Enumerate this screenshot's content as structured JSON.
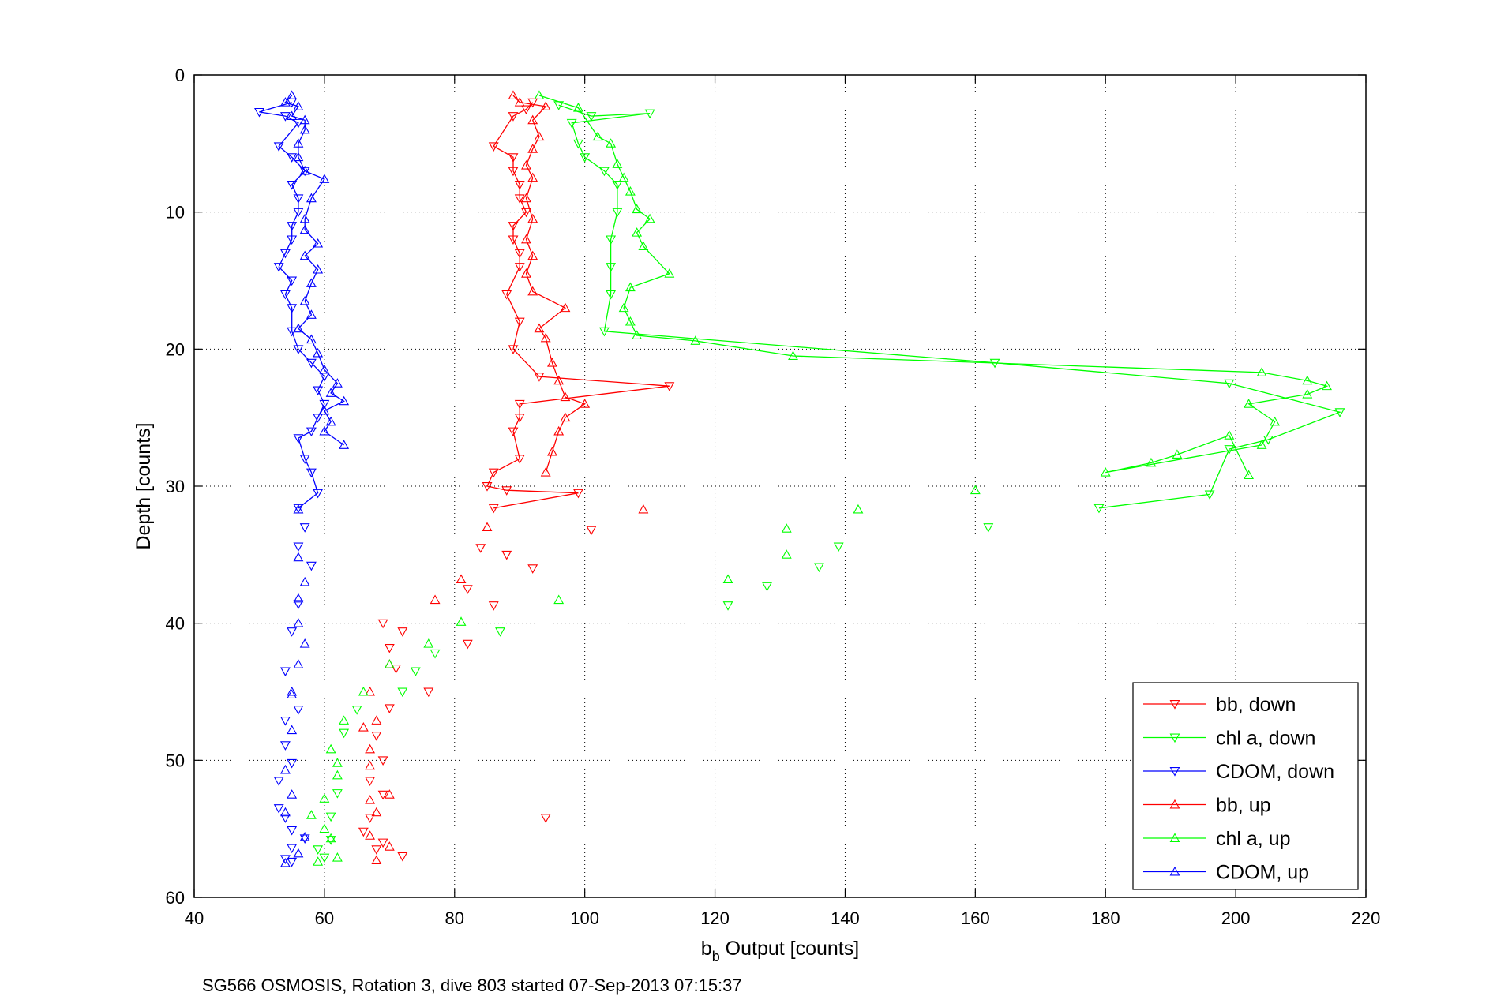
{
  "chart_data": {
    "type": "scatter",
    "xlabel": "b",
    "xlabel_sub": "b",
    "xlabel_rest": " Output [counts]",
    "ylabel": "Depth [counts]",
    "caption": "SG566 OSMOSIS, Rotation 3, dive 803 started 07-Sep-2013 07:15:37",
    "xlim": [
      40,
      220
    ],
    "ylim": [
      0,
      60
    ],
    "y_reversed": true,
    "grid": true,
    "legend_position": "bottom-right",
    "xticks": [
      "40",
      "60",
      "80",
      "100",
      "120",
      "140",
      "160",
      "180",
      "200",
      "220"
    ],
    "yticks": [
      "0",
      "10",
      "20",
      "30",
      "40",
      "50",
      "60"
    ],
    "colors": {
      "bb": "#ff0000",
      "chl": "#00ff00",
      "cdom": "#0000ff"
    },
    "series": [
      {
        "name": "bb, down",
        "color": "#ff0000",
        "marker": "triangle-down",
        "line": true,
        "points": [
          [
            92,
            2
          ],
          [
            91,
            2.5
          ],
          [
            89,
            3
          ],
          [
            86,
            5.2
          ],
          [
            89,
            6
          ],
          [
            89,
            7
          ],
          [
            90,
            8
          ],
          [
            90,
            9
          ],
          [
            91,
            10
          ],
          [
            89,
            11
          ],
          [
            89,
            12
          ],
          [
            90,
            13
          ],
          [
            90,
            14
          ],
          [
            88,
            16
          ],
          [
            90,
            18
          ],
          [
            89,
            20
          ],
          [
            93,
            22
          ],
          [
            113,
            22.7
          ],
          [
            90,
            24
          ],
          [
            90,
            25
          ],
          [
            89,
            26
          ],
          [
            90,
            28
          ],
          [
            86,
            29
          ],
          [
            85,
            30
          ],
          [
            88,
            30.3
          ],
          [
            99,
            30.5
          ],
          [
            86,
            31.6
          ]
        ]
      },
      {
        "name": "chl a, down",
        "color": "#00ff00",
        "marker": "triangle-down",
        "line": true,
        "points": [
          [
            96,
            2.2
          ],
          [
            101,
            3
          ],
          [
            110,
            2.8
          ],
          [
            98,
            3.5
          ],
          [
            99,
            5
          ],
          [
            100,
            6
          ],
          [
            103,
            7
          ],
          [
            105,
            8
          ],
          [
            105,
            10
          ],
          [
            104,
            12
          ],
          [
            104,
            14
          ],
          [
            104,
            16
          ],
          [
            103,
            18.7
          ],
          [
            163,
            21
          ],
          [
            199,
            22.5
          ],
          [
            216,
            24.6
          ],
          [
            205,
            26.6
          ],
          [
            199,
            27.3
          ],
          [
            196,
            30.6
          ],
          [
            179,
            31.6
          ]
        ]
      },
      {
        "name": "CDOM, down",
        "color": "#0000ff",
        "marker": "triangle-down",
        "line": true,
        "points": [
          [
            55,
            2
          ],
          [
            50,
            2.7
          ],
          [
            54,
            3
          ],
          [
            56,
            3.5
          ],
          [
            53,
            5.2
          ],
          [
            55,
            6
          ],
          [
            57,
            7
          ],
          [
            55,
            8
          ],
          [
            56,
            9
          ],
          [
            56,
            10
          ],
          [
            55,
            11
          ],
          [
            55,
            12
          ],
          [
            54,
            13
          ],
          [
            53,
            14
          ],
          [
            55,
            15
          ],
          [
            54,
            16
          ],
          [
            55,
            17
          ],
          [
            55,
            18.7
          ],
          [
            56,
            20
          ],
          [
            58,
            21
          ],
          [
            60,
            22
          ],
          [
            59,
            23
          ],
          [
            60,
            24
          ],
          [
            59,
            25
          ],
          [
            58,
            26
          ],
          [
            56,
            26.5
          ],
          [
            57,
            28
          ],
          [
            58,
            29
          ],
          [
            59,
            30.5
          ],
          [
            56,
            31.6
          ]
        ]
      },
      {
        "name": "bb, up",
        "color": "#ff0000",
        "marker": "triangle-up",
        "line": true,
        "points": [
          [
            89,
            1.5
          ],
          [
            90,
            2
          ],
          [
            94,
            2.3
          ],
          [
            92,
            3.3
          ],
          [
            93,
            4.5
          ],
          [
            92,
            5.4
          ],
          [
            91,
            6.6
          ],
          [
            92,
            7.5
          ],
          [
            91,
            9
          ],
          [
            92,
            10.5
          ],
          [
            91,
            12
          ],
          [
            92,
            13.2
          ],
          [
            91,
            14.5
          ],
          [
            92,
            15.8
          ],
          [
            97,
            17
          ],
          [
            93,
            18.5
          ],
          [
            94,
            19.2
          ],
          [
            95,
            21
          ],
          [
            96,
            22.3
          ],
          [
            97,
            23.5
          ],
          [
            100,
            24
          ],
          [
            97,
            25
          ],
          [
            96,
            26
          ],
          [
            95,
            27.5
          ],
          [
            94,
            29
          ]
        ]
      },
      {
        "name": "chl a, up",
        "color": "#00ff00",
        "marker": "triangle-up",
        "line": true,
        "points": [
          [
            93,
            1.5
          ],
          [
            99,
            2.4
          ],
          [
            102,
            4.5
          ],
          [
            104,
            5
          ],
          [
            105,
            6.5
          ],
          [
            106,
            7.5
          ],
          [
            107,
            8.5
          ],
          [
            108,
            9.8
          ],
          [
            110,
            10.5
          ],
          [
            108,
            11.5
          ],
          [
            109,
            12.5
          ],
          [
            113,
            14.5
          ],
          [
            107,
            15.5
          ],
          [
            106,
            17
          ],
          [
            107,
            18
          ],
          [
            108,
            19
          ],
          [
            117,
            19.4
          ],
          [
            132,
            20.5
          ],
          [
            204,
            21.7
          ],
          [
            211,
            22.3
          ],
          [
            214,
            22.7
          ],
          [
            211,
            23.3
          ],
          [
            202,
            24
          ],
          [
            206,
            25.3
          ],
          [
            204,
            27
          ],
          [
            180,
            29
          ],
          [
            187,
            28.3
          ],
          [
            191,
            27.7
          ],
          [
            199,
            26.3
          ],
          [
            202,
            29.2
          ]
        ]
      },
      {
        "name": "CDOM, up",
        "color": "#0000ff",
        "marker": "triangle-up",
        "line": true,
        "points": [
          [
            55,
            1.5
          ],
          [
            54,
            2
          ],
          [
            56,
            2.3
          ],
          [
            55,
            3
          ],
          [
            57,
            3.3
          ],
          [
            57,
            4
          ],
          [
            56,
            5
          ],
          [
            56,
            6
          ],
          [
            57,
            7
          ],
          [
            60,
            7.6
          ],
          [
            58,
            9
          ],
          [
            57,
            10.5
          ],
          [
            57,
            11.3
          ],
          [
            59,
            12.3
          ],
          [
            57,
            13.2
          ],
          [
            59,
            14.2
          ],
          [
            58,
            15.2
          ],
          [
            57,
            16.5
          ],
          [
            58,
            17.5
          ],
          [
            56,
            18.5
          ],
          [
            58,
            19.3
          ],
          [
            59,
            20.3
          ],
          [
            60,
            21.5
          ],
          [
            62,
            22.5
          ],
          [
            61,
            23.2
          ],
          [
            63,
            23.8
          ],
          [
            60,
            24.5
          ],
          [
            61,
            25.3
          ],
          [
            60,
            26
          ],
          [
            63,
            27
          ]
        ]
      },
      {
        "name": "",
        "color": "#ff0000",
        "marker": "triangle-down",
        "line": false,
        "points": [
          [
            101,
            33.2
          ],
          [
            84,
            34.5
          ],
          [
            88,
            35
          ],
          [
            92,
            36
          ],
          [
            86,
            38.7
          ],
          [
            82,
            37.5
          ],
          [
            69,
            40
          ],
          [
            72,
            40.6
          ],
          [
            70,
            41.8
          ],
          [
            82,
            41.5
          ],
          [
            71,
            43.3
          ],
          [
            76,
            45
          ],
          [
            70,
            46.2
          ],
          [
            68,
            48.2
          ],
          [
            69,
            50
          ],
          [
            67,
            51.5
          ],
          [
            69,
            52.5
          ],
          [
            67,
            54.2
          ],
          [
            94,
            54.2
          ],
          [
            66,
            55.2
          ],
          [
            69,
            56
          ],
          [
            68,
            56.5
          ],
          [
            72,
            57
          ]
        ]
      },
      {
        "name": "",
        "color": "#ff0000",
        "marker": "triangle-up",
        "line": false,
        "points": [
          [
            109,
            31.7
          ],
          [
            85,
            33
          ],
          [
            81,
            36.8
          ],
          [
            77,
            38.3
          ],
          [
            70,
            43
          ],
          [
            67,
            45
          ],
          [
            68,
            47.1
          ],
          [
            66,
            47.6
          ],
          [
            67,
            49.2
          ],
          [
            67,
            50.4
          ],
          [
            70,
            52.5
          ],
          [
            67,
            52.9
          ],
          [
            68,
            53.8
          ],
          [
            67,
            55.5
          ],
          [
            70,
            56.3
          ],
          [
            68,
            57.3
          ]
        ]
      },
      {
        "name": "",
        "color": "#00ff00",
        "marker": "triangle-down",
        "line": false,
        "points": [
          [
            162,
            33
          ],
          [
            139,
            34.4
          ],
          [
            136,
            35.9
          ],
          [
            128,
            37.3
          ],
          [
            122,
            38.7
          ],
          [
            87,
            40.6
          ],
          [
            77,
            42.2
          ],
          [
            74,
            43.5
          ],
          [
            72,
            45
          ],
          [
            65,
            46.3
          ],
          [
            63,
            48
          ],
          [
            62,
            52.4
          ],
          [
            61,
            54.1
          ],
          [
            59,
            56.5
          ],
          [
            60,
            57.1
          ],
          [
            61,
            55.8
          ]
        ]
      },
      {
        "name": "",
        "color": "#00ff00",
        "marker": "triangle-up",
        "line": false,
        "points": [
          [
            142,
            31.7
          ],
          [
            160,
            30.3
          ],
          [
            131,
            33.1
          ],
          [
            131,
            35
          ],
          [
            122,
            36.8
          ],
          [
            96,
            38.3
          ],
          [
            81,
            39.9
          ],
          [
            76,
            41.5
          ],
          [
            70,
            43
          ],
          [
            66,
            45
          ],
          [
            63,
            47.1
          ],
          [
            61,
            49.2
          ],
          [
            62,
            50.2
          ],
          [
            62,
            51.1
          ],
          [
            60,
            52.8
          ],
          [
            58,
            54
          ],
          [
            60,
            55
          ],
          [
            61,
            55.7
          ],
          [
            62,
            57.1
          ],
          [
            59,
            57.4
          ]
        ]
      },
      {
        "name": "",
        "color": "#0000ff",
        "marker": "triangle-down",
        "line": false,
        "points": [
          [
            57,
            33
          ],
          [
            56,
            34.4
          ],
          [
            58,
            35.8
          ],
          [
            56,
            38.6
          ],
          [
            55,
            40.6
          ],
          [
            54,
            43.5
          ],
          [
            56,
            46.3
          ],
          [
            54,
            47.1
          ],
          [
            54,
            48.9
          ],
          [
            55,
            50.2
          ],
          [
            53,
            51.5
          ],
          [
            53,
            53.5
          ],
          [
            54,
            54.2
          ],
          [
            55,
            55.1
          ],
          [
            57,
            55.7
          ],
          [
            55,
            56.4
          ],
          [
            54,
            57.2
          ],
          [
            55,
            57.4
          ]
        ]
      },
      {
        "name": "",
        "color": "#0000ff",
        "marker": "triangle-up",
        "line": false,
        "points": [
          [
            56,
            31.7
          ],
          [
            56,
            35.2
          ],
          [
            57,
            37
          ],
          [
            56,
            38.2
          ],
          [
            56,
            40
          ],
          [
            57,
            41.5
          ],
          [
            56,
            43
          ],
          [
            55,
            45
          ],
          [
            55,
            45.2
          ],
          [
            55,
            47.8
          ],
          [
            54,
            50.7
          ],
          [
            55,
            52.5
          ],
          [
            54,
            53.8
          ],
          [
            57,
            55.6
          ],
          [
            56,
            56.8
          ],
          [
            54,
            57.5
          ]
        ]
      }
    ]
  }
}
